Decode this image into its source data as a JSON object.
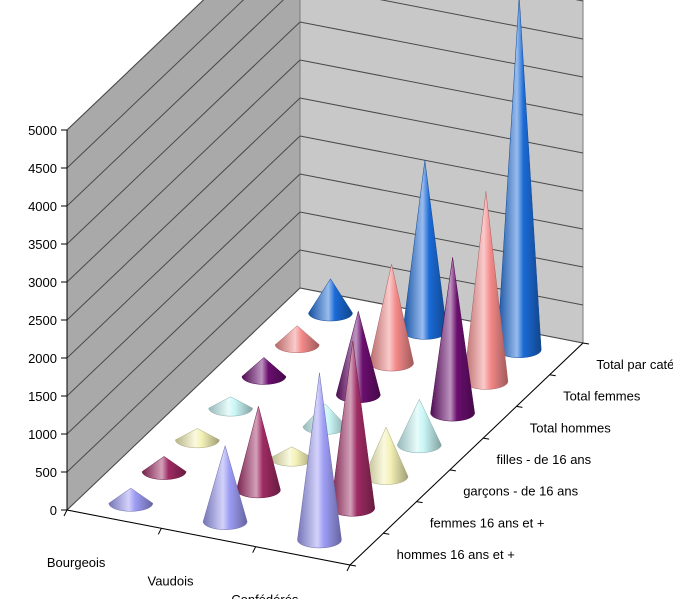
{
  "chart_data": {
    "type": "bar",
    "subtype": "3d-cone",
    "title": "",
    "xlabel": "",
    "ylabel": "",
    "ylim": [
      0,
      5000
    ],
    "yticks": [
      "0",
      "500",
      "1000",
      "1500",
      "2000",
      "2500",
      "3000",
      "3500",
      "4000",
      "4500",
      "5000"
    ],
    "grid": true,
    "categories": [
      "Bourgeois",
      "Vaudois",
      "Confédérés"
    ],
    "series": [
      {
        "name": "hommes 16 ans et +",
        "color": "#9d9cf4",
        "values": [
          200,
          1000,
          2200
        ]
      },
      {
        "name": "femmes 16 ans et +",
        "color": "#9e2b63",
        "values": [
          200,
          1100,
          2200
        ]
      },
      {
        "name": "garçons - de 16 ans",
        "color": "#f4f1b6",
        "values": [
          150,
          150,
          650
        ]
      },
      {
        "name": "filles - de 16 ans",
        "color": "#c9f6f6",
        "values": [
          150,
          300,
          600
        ]
      },
      {
        "name": "Total hommes",
        "color": "#6a0e6e",
        "values": [
          250,
          1100,
          2050
        ]
      },
      {
        "name": "Total femmes",
        "color": "#f48a8a",
        "values": [
          250,
          1300,
          2500
        ]
      },
      {
        "name": "Total par catégories",
        "color": "#1a6ad6",
        "values": [
          450,
          2250,
          4650
        ]
      }
    ]
  }
}
